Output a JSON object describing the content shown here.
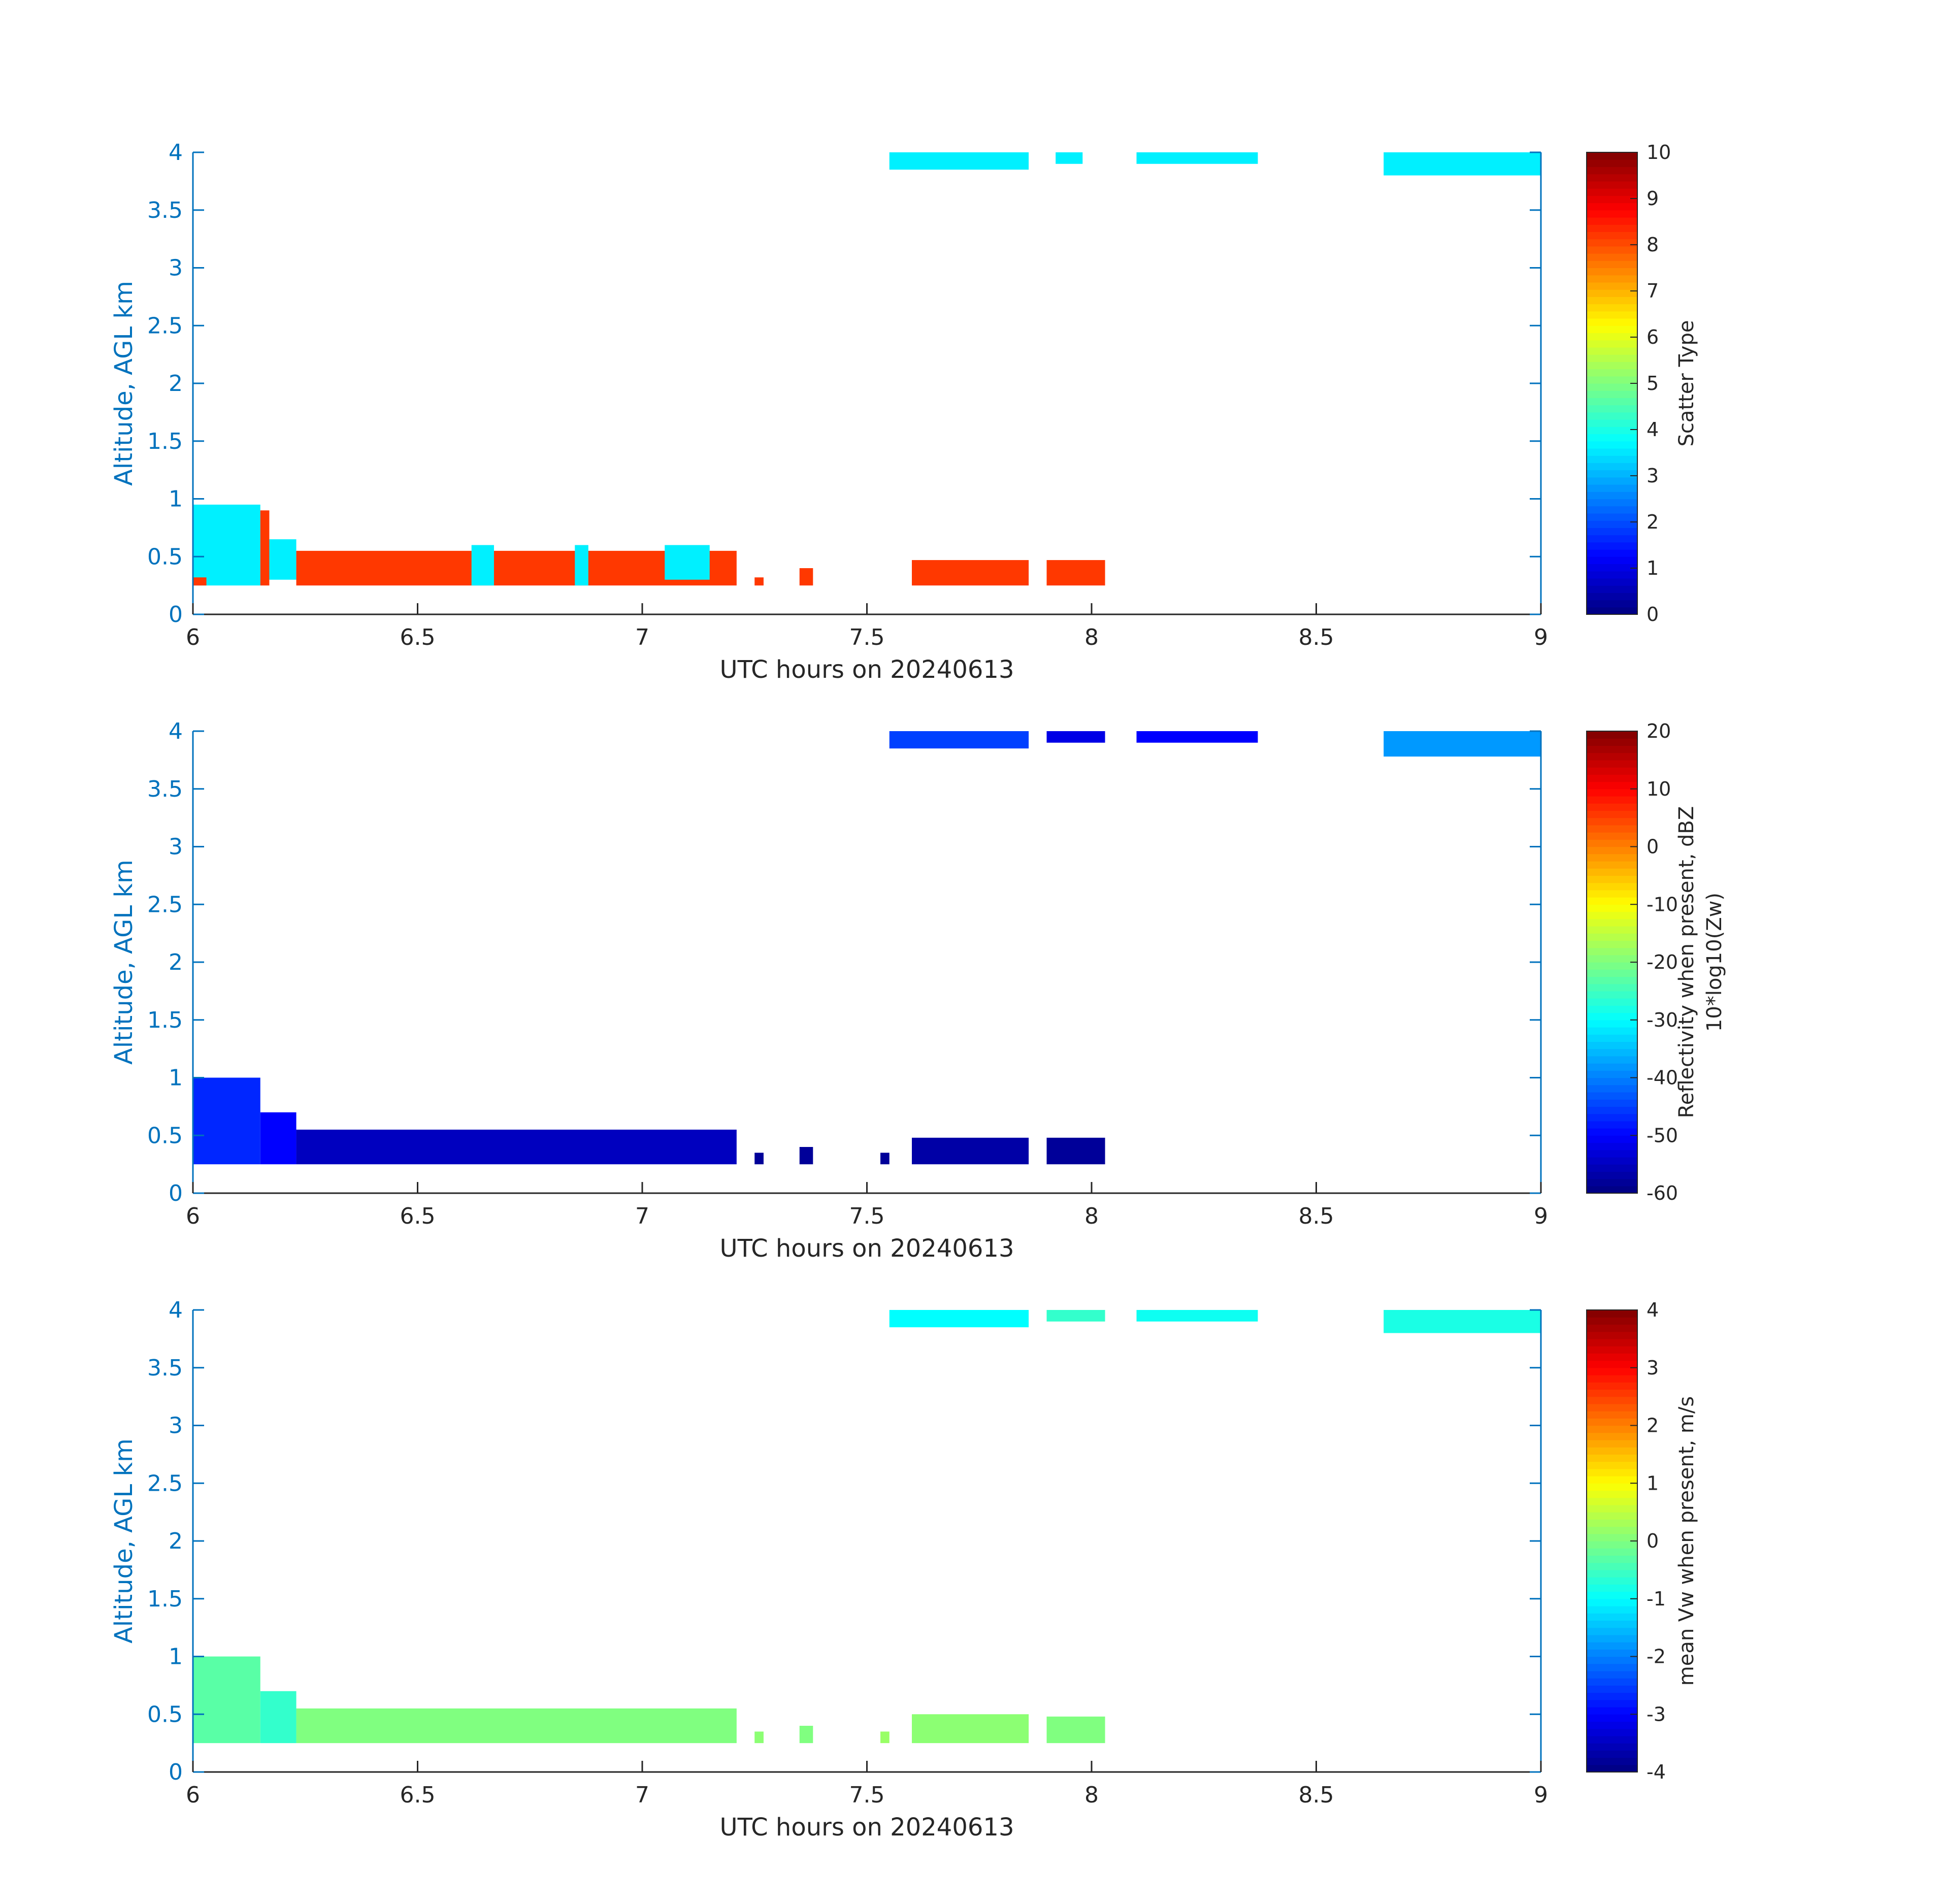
{
  "chart_data": [
    {
      "type": "heatmap",
      "xlabel": "UTC hours on 20240613",
      "ylabel": "Altitude, AGL km",
      "xlim": [
        6,
        9
      ],
      "ylim": [
        0,
        4
      ],
      "xticks": [
        "6",
        "6.5",
        "7",
        "7.5",
        "8",
        "8.5",
        "9"
      ],
      "yticks": [
        "0",
        "0.5",
        "1",
        "1.5",
        "2",
        "2.5",
        "3",
        "3.5",
        "4"
      ],
      "colorbar": {
        "label": "Scatter Type",
        "label_sub": "",
        "range": [
          0,
          10
        ],
        "ticks": [
          "0",
          "1",
          "2",
          "3",
          "4",
          "5",
          "6",
          "7",
          "8",
          "9",
          "10"
        ],
        "colormap": "jet"
      },
      "regions": [
        {
          "x": [
            6.0,
            6.15
          ],
          "y": [
            0.25,
            0.95
          ],
          "value": 3.6
        },
        {
          "x": [
            6.15,
            6.17
          ],
          "y": [
            0.25,
            0.9
          ],
          "value": 8.2
        },
        {
          "x": [
            6.17,
            6.23
          ],
          "y": [
            0.3,
            0.65
          ],
          "value": 3.6
        },
        {
          "x": [
            6.0,
            6.03
          ],
          "y": [
            0.25,
            0.32
          ],
          "value": 8.2
        },
        {
          "x": [
            6.23,
            7.21
          ],
          "y": [
            0.25,
            0.55
          ],
          "value": 8.2
        },
        {
          "x": [
            6.62,
            6.67
          ],
          "y": [
            0.25,
            0.6
          ],
          "value": 3.6
        },
        {
          "x": [
            6.85,
            6.88
          ],
          "y": [
            0.25,
            0.6
          ],
          "value": 3.6
        },
        {
          "x": [
            7.05,
            7.15
          ],
          "y": [
            0.3,
            0.6
          ],
          "value": 3.6
        },
        {
          "x": [
            7.25,
            7.27
          ],
          "y": [
            0.25,
            0.32
          ],
          "value": 8.2
        },
        {
          "x": [
            7.35,
            7.38
          ],
          "y": [
            0.25,
            0.4
          ],
          "value": 8.2
        },
        {
          "x": [
            7.6,
            7.86
          ],
          "y": [
            0.25,
            0.47
          ],
          "value": 8.2
        },
        {
          "x": [
            7.9,
            8.03
          ],
          "y": [
            0.25,
            0.47
          ],
          "value": 8.2
        },
        {
          "x": [
            7.55,
            7.86
          ],
          "y": [
            3.85,
            4.0
          ],
          "value": 3.6
        },
        {
          "x": [
            7.92,
            7.98
          ],
          "y": [
            3.9,
            4.0
          ],
          "value": 3.6
        },
        {
          "x": [
            8.1,
            8.37
          ],
          "y": [
            3.9,
            4.0
          ],
          "value": 3.6
        },
        {
          "x": [
            8.65,
            9.0
          ],
          "y": [
            3.8,
            4.0
          ],
          "value": 3.6
        }
      ]
    },
    {
      "type": "heatmap",
      "xlabel": "UTC hours on 20240613",
      "ylabel": "Altitude, AGL km",
      "xlim": [
        6,
        9
      ],
      "ylim": [
        0,
        4
      ],
      "xticks": [
        "6",
        "6.5",
        "7",
        "7.5",
        "8",
        "8.5",
        "9"
      ],
      "yticks": [
        "0",
        "0.5",
        "1",
        "1.5",
        "2",
        "2.5",
        "3",
        "3.5",
        "4"
      ],
      "colorbar": {
        "label": "Reflectivity when present, dBZ",
        "label_sub": "10*log10(Zw)",
        "range": [
          -60,
          20
        ],
        "ticks": [
          "-60",
          "-50",
          "-40",
          "-30",
          "-20",
          "-10",
          "0",
          "10",
          "20"
        ],
        "colormap": "jet"
      },
      "regions": [
        {
          "x": [
            6.0,
            6.15
          ],
          "y": [
            0.25,
            1.0
          ],
          "value": -47
        },
        {
          "x": [
            6.15,
            6.23
          ],
          "y": [
            0.25,
            0.7
          ],
          "value": -50
        },
        {
          "x": [
            6.23,
            7.21
          ],
          "y": [
            0.25,
            0.55
          ],
          "value": -55
        },
        {
          "x": [
            7.25,
            7.27
          ],
          "y": [
            0.25,
            0.35
          ],
          "value": -58
        },
        {
          "x": [
            7.35,
            7.38
          ],
          "y": [
            0.25,
            0.4
          ],
          "value": -58
        },
        {
          "x": [
            7.53,
            7.55
          ],
          "y": [
            0.25,
            0.35
          ],
          "value": -58
        },
        {
          "x": [
            7.6,
            7.86
          ],
          "y": [
            0.25,
            0.48
          ],
          "value": -57
        },
        {
          "x": [
            7.9,
            8.03
          ],
          "y": [
            0.25,
            0.48
          ],
          "value": -58
        },
        {
          "x": [
            7.55,
            7.86
          ],
          "y": [
            3.85,
            4.0
          ],
          "value": -45
        },
        {
          "x": [
            7.9,
            8.03
          ],
          "y": [
            3.9,
            4.0
          ],
          "value": -52
        },
        {
          "x": [
            8.1,
            8.37
          ],
          "y": [
            3.9,
            4.0
          ],
          "value": -50
        },
        {
          "x": [
            8.65,
            9.0
          ],
          "y": [
            3.78,
            4.0
          ],
          "value": -38
        }
      ]
    },
    {
      "type": "heatmap",
      "xlabel": "UTC hours on 20240613",
      "ylabel": "Altitude, AGL km",
      "xlim": [
        6,
        9
      ],
      "ylim": [
        0,
        4
      ],
      "xticks": [
        "6",
        "6.5",
        "7",
        "7.5",
        "8",
        "8.5",
        "9"
      ],
      "yticks": [
        "0",
        "0.5",
        "1",
        "1.5",
        "2",
        "2.5",
        "3",
        "3.5",
        "4"
      ],
      "colorbar": {
        "label": "mean Vw when present, m/s",
        "label_sub": "",
        "range": [
          -4,
          4
        ],
        "ticks": [
          "-4",
          "-3",
          "-2",
          "-1",
          "0",
          "1",
          "2",
          "3",
          "4"
        ],
        "colormap": "jet"
      },
      "regions": [
        {
          "x": [
            6.0,
            6.15
          ],
          "y": [
            0.25,
            1.0
          ],
          "value": -0.3
        },
        {
          "x": [
            6.15,
            6.23
          ],
          "y": [
            0.25,
            0.7
          ],
          "value": -0.6
        },
        {
          "x": [
            6.23,
            7.21
          ],
          "y": [
            0.25,
            0.55
          ],
          "value": 0.0
        },
        {
          "x": [
            7.25,
            7.27
          ],
          "y": [
            0.25,
            0.35
          ],
          "value": 0.1
        },
        {
          "x": [
            7.35,
            7.38
          ],
          "y": [
            0.25,
            0.4
          ],
          "value": 0.0
        },
        {
          "x": [
            7.53,
            7.55
          ],
          "y": [
            0.25,
            0.35
          ],
          "value": 0.2
        },
        {
          "x": [
            7.6,
            7.86
          ],
          "y": [
            0.25,
            0.5
          ],
          "value": 0.1
        },
        {
          "x": [
            7.9,
            8.03
          ],
          "y": [
            0.25,
            0.48
          ],
          "value": 0.0
        },
        {
          "x": [
            7.55,
            7.86
          ],
          "y": [
            3.85,
            4.0
          ],
          "value": -1.0
        },
        {
          "x": [
            7.9,
            8.03
          ],
          "y": [
            3.9,
            4.0
          ],
          "value": -0.6
        },
        {
          "x": [
            8.1,
            8.37
          ],
          "y": [
            3.9,
            4.0
          ],
          "value": -0.9
        },
        {
          "x": [
            8.65,
            9.0
          ],
          "y": [
            3.8,
            4.0
          ],
          "value": -0.8
        }
      ]
    }
  ]
}
